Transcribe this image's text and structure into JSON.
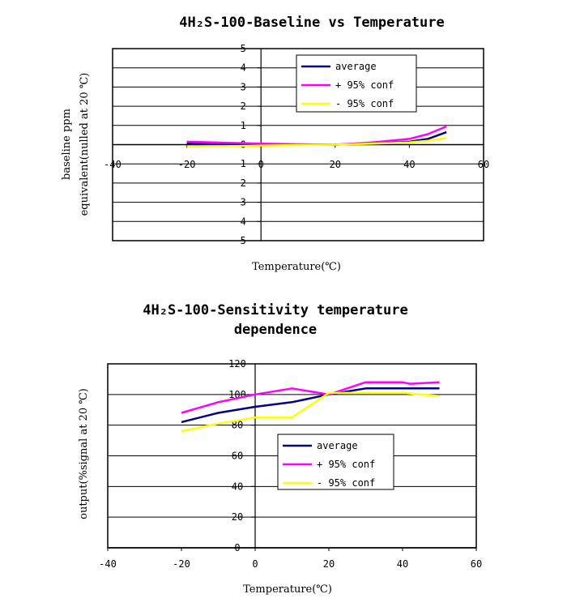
{
  "chart_data": [
    {
      "type": "line",
      "title": "4H₂S-100-Baseline vs Temperature",
      "xlabel": "Temperature(℃)",
      "ylabel": "baseline ppm equivalent(nulled at 20 ℃)",
      "xlim": [
        -40,
        60
      ],
      "ylim": [
        -5,
        5
      ],
      "xticks": [
        -40,
        -20,
        0,
        20,
        40,
        60
      ],
      "yticks": [
        5,
        4,
        3,
        2,
        1,
        0,
        1,
        2,
        3,
        4,
        5
      ],
      "grid": true,
      "legend_position": "top-right",
      "series": [
        {
          "name": "average",
          "color": "#000080",
          "x": [
            -20,
            -10,
            0,
            10,
            20,
            30,
            40,
            45,
            50
          ],
          "y": [
            0.05,
            0.02,
            0.0,
            0.0,
            0.0,
            0.05,
            0.15,
            0.3,
            0.65
          ]
        },
        {
          "name": "+ 95% conf",
          "color": "#ff00ff",
          "x": [
            -20,
            -10,
            0,
            10,
            20,
            30,
            40,
            45,
            50
          ],
          "y": [
            0.15,
            0.1,
            0.05,
            0.02,
            0.0,
            0.12,
            0.3,
            0.55,
            0.95
          ]
        },
        {
          "name": "- 95% conf",
          "color": "#ffff00",
          "x": [
            -20,
            -10,
            0,
            10,
            20,
            30,
            40,
            45,
            50
          ],
          "y": [
            -0.1,
            -0.08,
            -0.05,
            -0.02,
            0.0,
            0.05,
            0.12,
            0.2,
            0.35
          ]
        }
      ]
    },
    {
      "type": "line",
      "title": [
        "4H₂S-100-Sensitivity temperature",
        "dependence"
      ],
      "xlabel": "Temperature(℃)",
      "ylabel": "output(%signal at 20 ℃)",
      "xlim": [
        -40,
        60
      ],
      "ylim": [
        0,
        120
      ],
      "xticks": [
        -40,
        -20,
        0,
        20,
        40,
        60
      ],
      "yticks": [
        0,
        20,
        40,
        60,
        80,
        100,
        120
      ],
      "grid": true,
      "legend_position": "center-right",
      "series": [
        {
          "name": "average",
          "color": "#000080",
          "x": [
            -20,
            -10,
            0,
            10,
            20,
            30,
            40,
            50
          ],
          "y": [
            82,
            88,
            92,
            95,
            100,
            104,
            104,
            104
          ]
        },
        {
          "name": "+ 95% conf",
          "color": "#ff00ff",
          "x": [
            -20,
            -10,
            0,
            10,
            20,
            30,
            40,
            42,
            50
          ],
          "y": [
            88,
            95,
            100,
            104,
            100,
            108,
            108,
            107,
            108
          ]
        },
        {
          "name": "- 95% conf",
          "color": "#ffff00",
          "x": [
            -20,
            -10,
            0,
            10,
            20,
            30,
            40,
            50
          ],
          "y": [
            76,
            81,
            85,
            85,
            101,
            101,
            101,
            99
          ]
        }
      ]
    }
  ]
}
